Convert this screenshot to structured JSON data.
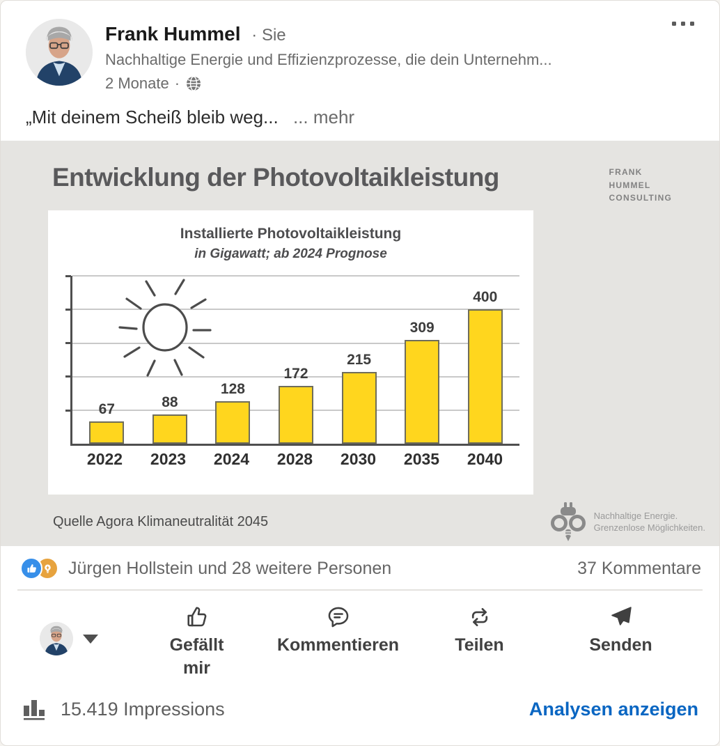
{
  "header": {
    "name": "Frank Hummel",
    "follow_label": "· Sie",
    "headline": "Nachhaltige Energie und Effizienzprozesse, die dein Unternehm...",
    "time": "2 Monate",
    "time_separator": "·"
  },
  "post": {
    "text": "„Mit deinem Scheiß bleib weg... ",
    "see_more": "... mehr"
  },
  "poster": {
    "title": "Entwicklung der Photovoltaikleistung",
    "brand_lines": [
      "FRANK",
      "HUMMEL",
      "CONSULTING"
    ],
    "source": "Quelle Agora Klimaneutralität 2045",
    "brand_tagline_1": "Nachhaltige Energie.",
    "brand_tagline_2": "Grenzenlose Möglichkeiten."
  },
  "chart_data": {
    "type": "bar",
    "title": "Installierte Photovoltaikleistung",
    "subtitle": "in Gigawatt; ab 2024 Prognose",
    "categories": [
      "2022",
      "2023",
      "2024",
      "2028",
      "2030",
      "2035",
      "2040"
    ],
    "values": [
      67,
      88,
      128,
      172,
      215,
      309,
      400
    ],
    "xlabel": "",
    "ylabel": "",
    "ylim": [
      0,
      500
    ],
    "gridline_step": 100,
    "grid": true,
    "legend": false,
    "bar_color": "#ffd61e",
    "bar_border_color": "#6f6d5a"
  },
  "social": {
    "reactions_text": "Jürgen Hollstein und 28 weitere Personen",
    "comments_text": "37 Kommentare"
  },
  "actions": {
    "like_label": "Gefällt mir",
    "comment_label": "Kommentieren",
    "repost_label": "Teilen",
    "send_label": "Senden"
  },
  "analytics": {
    "impressions": "15.419 Impressions",
    "link_label": "Analysen anzeigen"
  },
  "colors": {
    "accent_blue": "#0a66c2",
    "like_blue": "#378fe9",
    "insightful_amber": "#e7a33e",
    "bar_yellow": "#ffd61e",
    "poster_background": "#e5e4e1"
  }
}
